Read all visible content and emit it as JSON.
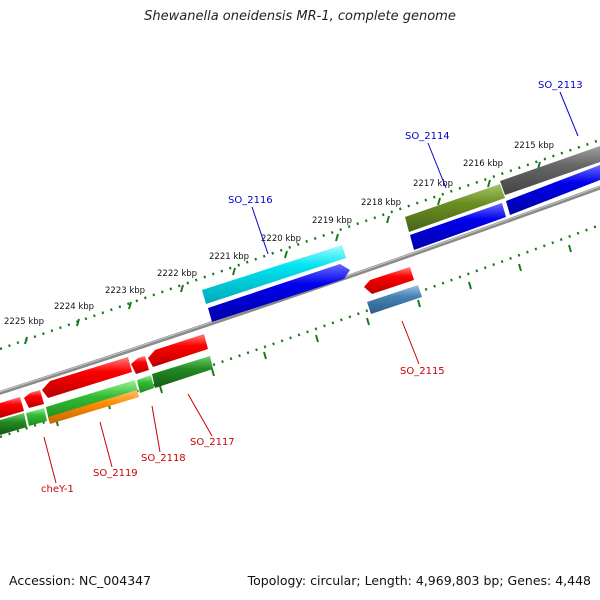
{
  "title": "Shewanella oneidensis MR-1, complete genome",
  "footer": {
    "accession": "Accession: NC_004347",
    "summary": "Topology: circular; Length: 4,969,803 bp; Genes: 4,448"
  },
  "scale": {
    "unit": "kbp",
    "ticks": [
      {
        "label": "2215 kbp"
      },
      {
        "label": "2216 kbp"
      },
      {
        "label": "2217 kbp"
      },
      {
        "label": "2218 kbp"
      },
      {
        "label": "2219 kbp"
      },
      {
        "label": "2220 kbp"
      },
      {
        "label": "2221 kbp"
      },
      {
        "label": "2222 kbp"
      },
      {
        "label": "2223 kbp"
      },
      {
        "label": "2224 kbp"
      },
      {
        "label": "2225 kbp"
      }
    ]
  },
  "genes_forward": [
    {
      "label": "SO_2113",
      "color": "#0000cc"
    },
    {
      "label": "SO_2114",
      "color": "#0000cc"
    },
    {
      "label": "SO_2116",
      "color": "#0000cc"
    }
  ],
  "genes_reverse": [
    {
      "label": "SO_2115",
      "color": "#cc0000"
    },
    {
      "label": "SO_2117",
      "color": "#cc0000"
    },
    {
      "label": "SO_2118",
      "color": "#cc0000"
    },
    {
      "label": "SO_2119",
      "color": "#cc0000"
    },
    {
      "label": "cheY-1",
      "color": "#cc0000"
    }
  ],
  "colors": {
    "backbone": "#888888",
    "tick_green": "#1a7a1a",
    "gene_blue": "#0000dd",
    "gene_red": "#ee0000",
    "cyan": "#00d8e8",
    "olive": "#6b8e23",
    "gray_feature": "#666666",
    "steel": "#4682b4",
    "green": "#33bb33",
    "dark_green": "#228b22",
    "orange": "#ff8c00"
  }
}
